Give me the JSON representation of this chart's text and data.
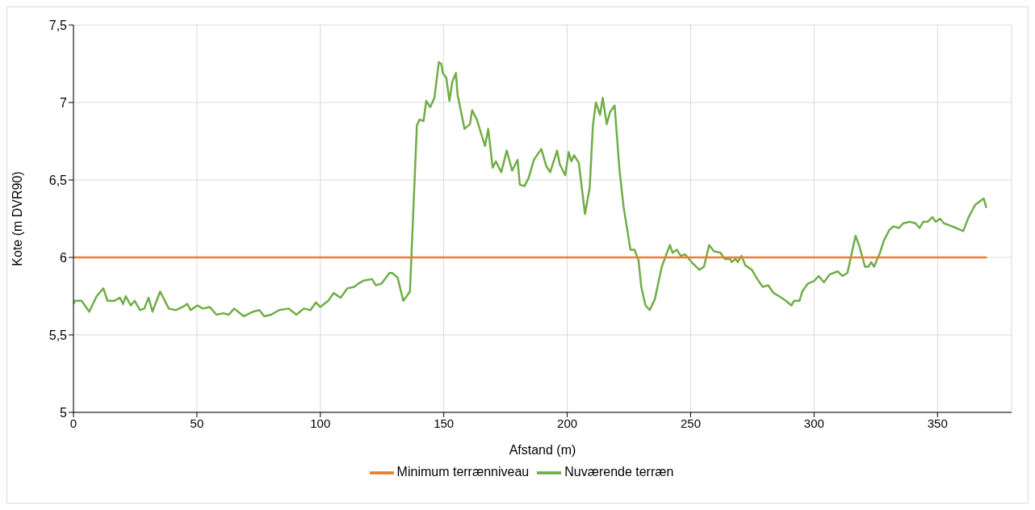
{
  "chart_data": {
    "type": "line",
    "xlabel": "Afstand (m)",
    "ylabel": "Kote (m DVR90)",
    "xlim": [
      0,
      380
    ],
    "xticks": [
      0,
      50,
      100,
      150,
      200,
      250,
      300,
      350
    ],
    "ylim": [
      5,
      7.5
    ],
    "yticks": [
      5,
      {
        "value": 5.5,
        "label": "5,5"
      },
      6,
      {
        "value": 6.5,
        "label": "6,5"
      },
      7,
      {
        "value": 7.5,
        "label": "7,5"
      }
    ],
    "grid": true,
    "legend": "bottom",
    "marker": "none",
    "line_style": "solid",
    "series": [
      {
        "name": "Nuværende terræn",
        "color": "#70ad47",
        "x": [
          0,
          0.6,
          3.3,
          6.4,
          9.4,
          12.1,
          13.8,
          16.6,
          18.8,
          20.1,
          21.2,
          23.2,
          24.8,
          27,
          28.7,
          30.4,
          32,
          35.1,
          38.6,
          41.4,
          44.2,
          46.1,
          47.5,
          50.2,
          52.4,
          55.2,
          57.9,
          60.7,
          62.9,
          65.1,
          69,
          72.8,
          75.3,
          77.3,
          80,
          83.3,
          87.2,
          90.3,
          93.3,
          96,
          98.2,
          99.9,
          103.2,
          105.4,
          108.2,
          110.9,
          113.7,
          115.3,
          117.5,
          120.9,
          122.5,
          124.7,
          128,
          129.1,
          131.3,
          133.6,
          136.3,
          139.1,
          140.2,
          141.8,
          142.9,
          144.5,
          146.2,
          148,
          149,
          149.6,
          151,
          152.3,
          153.4,
          154.9,
          155.6,
          158.4,
          160.6,
          161.5,
          163.4,
          165.5,
          166.7,
          168,
          169.8,
          171.1,
          173.3,
          175.5,
          177.7,
          179.9,
          180.8,
          182.7,
          184.3,
          186.5,
          188.2,
          189.5,
          191.5,
          193.1,
          195.9,
          197,
          199.2,
          200.6,
          201.7,
          202.8,
          204.7,
          207.2,
          209.1,
          210.4,
          211.6,
          213.3,
          214.4,
          216,
          217.4,
          219.2,
          221.2,
          222.8,
          225.6,
          227.3,
          228.9,
          230,
          231.7,
          233.4,
          235.5,
          238.3,
          241.6,
          242.7,
          244.4,
          246,
          247.7,
          250.4,
          253.5,
          255.4,
          257.5,
          259.4,
          262.1,
          263.8,
          266,
          266.6,
          268.2,
          269.1,
          270.6,
          272.1,
          274.8,
          277,
          279.2,
          281.4,
          283.6,
          285.8,
          288.6,
          290.8,
          291.9,
          294.1,
          295.2,
          297.4,
          300.2,
          301.8,
          304,
          306.3,
          309.6,
          311.5,
          313.5,
          316.8,
          318.4,
          320.6,
          322,
          323.1,
          324.3,
          326.7,
          328.3,
          330.6,
          332.2,
          334.4,
          336.1,
          338.8,
          341.1,
          342.7,
          344.2,
          346,
          347.9,
          349.3,
          351,
          352.6,
          354.3,
          357.6,
          360.4,
          362.6,
          365.3,
          367,
          368.7,
          369.8
        ],
        "values": [
          5.7,
          5.72,
          5.72,
          5.65,
          5.75,
          5.8,
          5.72,
          5.72,
          5.74,
          5.7,
          5.75,
          5.69,
          5.72,
          5.66,
          5.67,
          5.74,
          5.65,
          5.78,
          5.67,
          5.66,
          5.68,
          5.7,
          5.66,
          5.69,
          5.67,
          5.68,
          5.63,
          5.64,
          5.63,
          5.67,
          5.62,
          5.65,
          5.66,
          5.62,
          5.63,
          5.66,
          5.67,
          5.63,
          5.67,
          5.66,
          5.71,
          5.68,
          5.72,
          5.77,
          5.74,
          5.8,
          5.81,
          5.83,
          5.85,
          5.86,
          5.82,
          5.83,
          5.9,
          5.9,
          5.87,
          5.72,
          5.78,
          6.85,
          6.89,
          6.88,
          7.01,
          6.97,
          7.03,
          7.26,
          7.25,
          7.19,
          7.16,
          7.01,
          7.13,
          7.19,
          7.05,
          6.83,
          6.86,
          6.95,
          6.89,
          6.78,
          6.72,
          6.83,
          6.58,
          6.62,
          6.55,
          6.69,
          6.56,
          6.63,
          6.47,
          6.46,
          6.51,
          6.63,
          6.67,
          6.7,
          6.59,
          6.55,
          6.69,
          6.6,
          6.53,
          6.68,
          6.62,
          6.66,
          6.61,
          6.28,
          6.45,
          6.85,
          7,
          6.92,
          7.03,
          6.86,
          6.94,
          6.98,
          6.56,
          6.33,
          6.05,
          6.05,
          5.98,
          5.81,
          5.69,
          5.66,
          5.73,
          5.94,
          6.08,
          6.03,
          6.05,
          6.01,
          6.02,
          5.97,
          5.92,
          5.94,
          6.08,
          6.04,
          6.03,
          5.99,
          5.99,
          5.97,
          5.99,
          5.97,
          6.01,
          5.95,
          5.92,
          5.86,
          5.81,
          5.82,
          5.77,
          5.75,
          5.72,
          5.69,
          5.72,
          5.72,
          5.78,
          5.83,
          5.85,
          5.88,
          5.84,
          5.89,
          5.91,
          5.88,
          5.9,
          6.14,
          6.07,
          5.94,
          5.94,
          5.97,
          5.94,
          6.03,
          6.11,
          6.18,
          6.2,
          6.19,
          6.22,
          6.23,
          6.22,
          6.19,
          6.23,
          6.23,
          6.26,
          6.23,
          6.25,
          6.22,
          6.21,
          6.19,
          6.17,
          6.26,
          6.34,
          6.36,
          6.38,
          6.32
        ]
      },
      {
        "name": "Minimum terrænniveau",
        "color": "#ed7d31",
        "x": [
          0,
          370
        ],
        "values": [
          6,
          6
        ]
      }
    ]
  }
}
